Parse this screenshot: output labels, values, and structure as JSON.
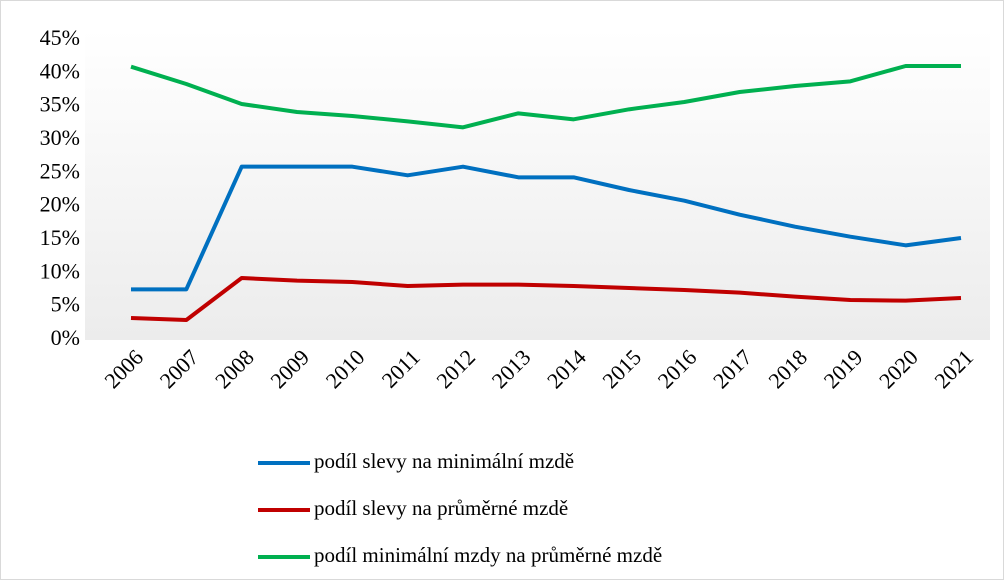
{
  "chart_data": {
    "type": "line",
    "x": [
      "2006",
      "2007",
      "2008",
      "2009",
      "2010",
      "2011",
      "2012",
      "2013",
      "2014",
      "2015",
      "2016",
      "2017",
      "2018",
      "2019",
      "2020",
      "2021"
    ],
    "series": [
      {
        "name": "podíl slevy na minimální mzdě",
        "color": "#0070c0",
        "values": [
          7.6,
          7.6,
          26,
          26,
          26,
          24.7,
          26,
          24.4,
          24.4,
          22.5,
          20.9,
          18.8,
          17,
          15.5,
          14.2,
          15.3
        ]
      },
      {
        "name": "podíl slevy na průměrné mzdě",
        "color": "#c00000",
        "values": [
          3.3,
          3.0,
          9.3,
          8.9,
          8.7,
          8.1,
          8.3,
          8.3,
          8.1,
          7.8,
          7.5,
          7.1,
          6.5,
          6.0,
          5.9,
          6.3
        ]
      },
      {
        "name": "podíl minimální mzdy na průměrné mzdě",
        "color": "#00b050",
        "values": [
          41,
          38.4,
          35.4,
          34.2,
          33.6,
          32.8,
          31.9,
          34,
          33.1,
          34.6,
          35.7,
          37.2,
          38.1,
          38.8,
          41.1,
          41.1
        ]
      }
    ],
    "ylim": [
      0,
      45
    ],
    "yticks": [
      {
        "value": 0,
        "label": "0%"
      },
      {
        "value": 5,
        "label": "5%"
      },
      {
        "value": 10,
        "label": "10%"
      },
      {
        "value": 15,
        "label": "15%"
      },
      {
        "value": 20,
        "label": "20%"
      },
      {
        "value": 25,
        "label": "25%"
      },
      {
        "value": 30,
        "label": "30%"
      },
      {
        "value": 35,
        "label": "35%"
      },
      {
        "value": 40,
        "label": "40%"
      },
      {
        "value": 45,
        "label": "45%"
      }
    ],
    "grid": false,
    "legend": "bottom"
  }
}
